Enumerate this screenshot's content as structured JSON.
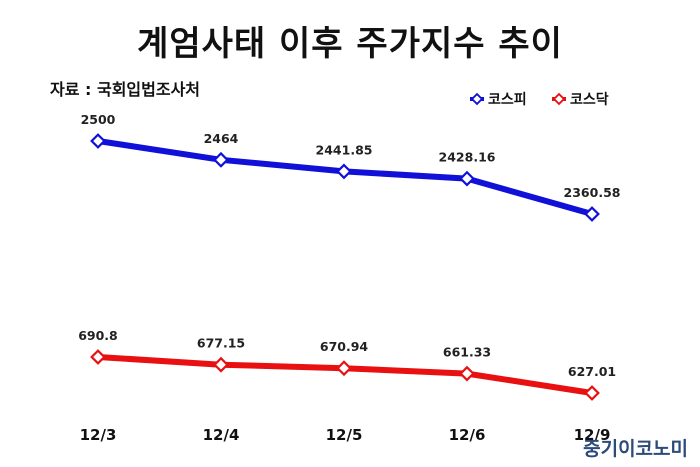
{
  "chart_data": {
    "type": "line",
    "title": "계엄사태 이후 주가지수 추이",
    "source": "자료 : 국회입법조사처",
    "categories": [
      "12/3",
      "12/4",
      "12/5",
      "12/6",
      "12/9"
    ],
    "series": [
      {
        "name": "코스피",
        "color": "#1010d8",
        "values": [
          2500,
          2464,
          2441.85,
          2428.16,
          2360.58
        ],
        "labels": [
          "2500",
          "2464",
          "2441.85",
          "2428.16",
          "2360.58"
        ]
      },
      {
        "name": "코스닥",
        "color": "#e81010",
        "values": [
          690.8,
          677.15,
          670.94,
          661.33,
          627.01
        ],
        "labels": [
          "690.8",
          "677.15",
          "670.94",
          "661.33",
          "627.01"
        ]
      }
    ],
    "legend_position": "top-right",
    "grid": false
  },
  "watermark": "중기이코노미"
}
